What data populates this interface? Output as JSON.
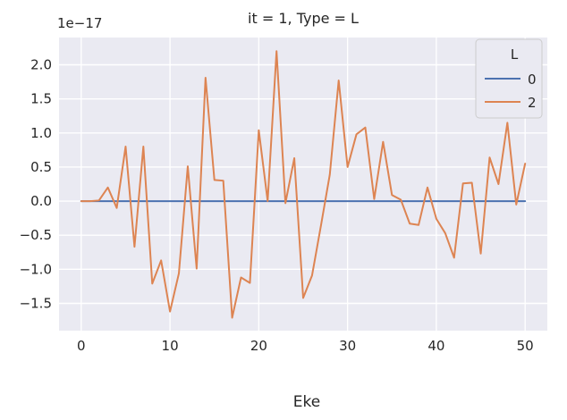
{
  "chart_data": {
    "type": "line",
    "title": "it = 1, Type = L",
    "xlabel": "Eke",
    "ylabel": "",
    "offset_text": "1e−17",
    "xlim": [
      -2.5,
      52.5
    ],
    "ylim": [
      -1.9,
      2.4
    ],
    "xticks": [
      0,
      10,
      20,
      30,
      40,
      50
    ],
    "xtick_labels": [
      "0",
      "10",
      "20",
      "30",
      "40",
      "50"
    ],
    "yticks": [
      -1.5,
      -1.0,
      -0.5,
      0.0,
      0.5,
      1.0,
      1.5,
      2.0
    ],
    "ytick_labels": [
      "−1.5",
      "−1.0",
      "−0.5",
      "0.0",
      "0.5",
      "1.0",
      "1.5",
      "2.0"
    ],
    "grid": true,
    "legend": {
      "title": "L",
      "placement": "top-right"
    },
    "x": [
      0,
      1,
      2,
      3,
      4,
      5,
      6,
      7,
      8,
      9,
      10,
      11,
      12,
      13,
      14,
      15,
      16,
      17,
      18,
      19,
      20,
      21,
      22,
      23,
      24,
      25,
      26,
      27,
      28,
      29,
      30,
      31,
      32,
      33,
      34,
      35,
      36,
      37,
      38,
      39,
      40,
      41,
      42,
      43,
      44,
      45,
      46,
      47,
      48,
      49,
      50
    ],
    "series": [
      {
        "name": "0",
        "color": "#4c72b0",
        "values": [
          0,
          0,
          0,
          0,
          0,
          0,
          0,
          0,
          0,
          0,
          0,
          0,
          0,
          0,
          0,
          0,
          0,
          0,
          0,
          0,
          0,
          0,
          0,
          0,
          0,
          0,
          0,
          0,
          0,
          0,
          0,
          0,
          0,
          0,
          0,
          0,
          0,
          0,
          0,
          0,
          0,
          0,
          0,
          0,
          0,
          0,
          0,
          0,
          0,
          0,
          0
        ]
      },
      {
        "name": "2",
        "color": "#dd8452",
        "values": [
          0.0,
          0.0,
          0.01,
          0.2,
          -0.1,
          0.8,
          -0.67,
          0.8,
          -1.21,
          -0.87,
          -1.62,
          -1.06,
          0.51,
          -0.99,
          1.81,
          0.31,
          0.3,
          -1.71,
          -1.12,
          -1.2,
          1.04,
          0.0,
          2.2,
          -0.03,
          0.63,
          -1.42,
          -1.09,
          -0.36,
          0.39,
          1.77,
          0.5,
          0.98,
          1.08,
          0.03,
          0.87,
          0.09,
          0.02,
          -0.33,
          -0.35,
          0.2,
          -0.26,
          -0.47,
          -0.83,
          0.26,
          0.27,
          -0.77,
          0.64,
          0.25,
          1.15,
          -0.05,
          0.55
        ]
      }
    ]
  }
}
